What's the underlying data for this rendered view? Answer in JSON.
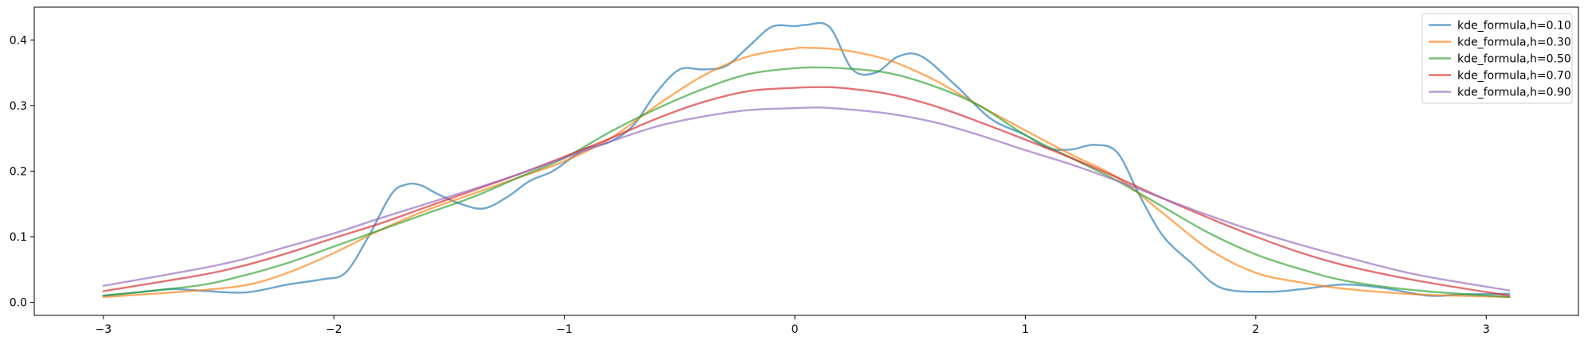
{
  "chart_data": {
    "type": "line",
    "title": "",
    "xlabel": "",
    "ylabel": "",
    "xlim": [
      -3.3,
      3.4
    ],
    "ylim": [
      -0.02,
      0.45
    ],
    "xticks": [
      -3,
      -2,
      -1,
      0,
      1,
      2,
      3
    ],
    "xtick_labels": [
      "−3",
      "−2",
      "−1",
      "0",
      "1",
      "2",
      "3"
    ],
    "yticks": [
      0.0,
      0.1,
      0.2,
      0.3,
      0.4
    ],
    "ytick_labels": [
      "0.0",
      "0.1",
      "0.2",
      "0.3",
      "0.4"
    ],
    "grid": false,
    "legend_position": "top-right",
    "series": [
      {
        "name": "kde_formula,h=0.10",
        "color": "#1f77b4",
        "x": [
          -3.0,
          -2.85,
          -2.7,
          -2.55,
          -2.38,
          -2.2,
          -2.05,
          -1.95,
          -1.85,
          -1.75,
          -1.68,
          -1.62,
          -1.55,
          -1.45,
          -1.35,
          -1.25,
          -1.15,
          -1.05,
          -0.95,
          -0.9,
          -0.8,
          -0.7,
          -0.6,
          -0.5,
          -0.4,
          -0.3,
          -0.2,
          -0.1,
          0.0,
          0.05,
          0.15,
          0.25,
          0.35,
          0.45,
          0.55,
          0.7,
          0.85,
          1.0,
          1.1,
          1.2,
          1.3,
          1.4,
          1.5,
          1.6,
          1.72,
          1.85,
          2.05,
          2.2,
          2.38,
          2.55,
          2.75,
          2.9,
          3.1
        ],
        "y": [
          0.01,
          0.015,
          0.02,
          0.017,
          0.015,
          0.027,
          0.035,
          0.045,
          0.1,
          0.165,
          0.18,
          0.178,
          0.165,
          0.15,
          0.143,
          0.16,
          0.185,
          0.2,
          0.225,
          0.235,
          0.245,
          0.27,
          0.32,
          0.355,
          0.355,
          0.36,
          0.39,
          0.42,
          0.421,
          0.423,
          0.42,
          0.355,
          0.35,
          0.375,
          0.375,
          0.33,
          0.28,
          0.255,
          0.235,
          0.233,
          0.24,
          0.228,
          0.16,
          0.1,
          0.06,
          0.022,
          0.016,
          0.02,
          0.027,
          0.022,
          0.01,
          0.012,
          0.013
        ]
      },
      {
        "name": "kde_formula,h=0.30",
        "color": "#ff7f0e",
        "x": [
          -3.0,
          -2.7,
          -2.4,
          -2.2,
          -2.0,
          -1.8,
          -1.6,
          -1.4,
          -1.2,
          -1.0,
          -0.8,
          -0.6,
          -0.4,
          -0.2,
          0.0,
          0.05,
          0.2,
          0.4,
          0.6,
          0.8,
          1.0,
          1.2,
          1.4,
          1.6,
          1.8,
          2.0,
          2.2,
          2.4,
          2.7,
          3.1
        ],
        "y": [
          0.008,
          0.015,
          0.025,
          0.045,
          0.075,
          0.11,
          0.14,
          0.165,
          0.19,
          0.215,
          0.25,
          0.3,
          0.345,
          0.375,
          0.387,
          0.388,
          0.385,
          0.37,
          0.34,
          0.3,
          0.262,
          0.225,
          0.19,
          0.135,
          0.08,
          0.045,
          0.03,
          0.02,
          0.012,
          0.008
        ]
      },
      {
        "name": "kde_formula,h=0.50",
        "color": "#2ca02c",
        "x": [
          -3.0,
          -2.6,
          -2.4,
          -2.2,
          -2.0,
          -1.8,
          -1.6,
          -1.4,
          -1.2,
          -1.0,
          -0.8,
          -0.6,
          -0.4,
          -0.2,
          0.0,
          0.1,
          0.2,
          0.4,
          0.6,
          0.8,
          1.0,
          1.2,
          1.4,
          1.6,
          1.8,
          2.0,
          2.2,
          2.4,
          2.7,
          3.1
        ],
        "y": [
          0.01,
          0.025,
          0.04,
          0.06,
          0.085,
          0.11,
          0.135,
          0.16,
          0.19,
          0.22,
          0.26,
          0.295,
          0.325,
          0.348,
          0.357,
          0.358,
          0.357,
          0.35,
          0.33,
          0.3,
          0.255,
          0.22,
          0.185,
          0.145,
          0.105,
          0.073,
          0.05,
          0.032,
          0.018,
          0.008
        ]
      },
      {
        "name": "kde_formula,h=0.70",
        "color": "#d62728",
        "x": [
          -3.0,
          -2.6,
          -2.4,
          -2.2,
          -2.0,
          -1.8,
          -1.6,
          -1.4,
          -1.2,
          -1.0,
          -0.8,
          -0.6,
          -0.4,
          -0.2,
          0.0,
          0.1,
          0.2,
          0.4,
          0.6,
          0.8,
          1.0,
          1.2,
          1.4,
          1.6,
          1.8,
          2.0,
          2.2,
          2.4,
          2.7,
          3.1
        ],
        "y": [
          0.017,
          0.04,
          0.055,
          0.075,
          0.098,
          0.12,
          0.145,
          0.17,
          0.195,
          0.222,
          0.25,
          0.28,
          0.305,
          0.322,
          0.327,
          0.328,
          0.327,
          0.318,
          0.3,
          0.275,
          0.248,
          0.22,
          0.19,
          0.158,
          0.128,
          0.1,
          0.075,
          0.055,
          0.033,
          0.01
        ]
      },
      {
        "name": "kde_formula,h=0.90",
        "color": "#9467bd",
        "x": [
          -3.0,
          -2.6,
          -2.4,
          -2.2,
          -2.0,
          -1.8,
          -1.6,
          -1.4,
          -1.2,
          -1.0,
          -0.8,
          -0.6,
          -0.4,
          -0.2,
          0.0,
          0.1,
          0.2,
          0.4,
          0.6,
          0.8,
          1.0,
          1.2,
          1.4,
          1.6,
          1.8,
          2.0,
          2.2,
          2.4,
          2.7,
          3.1
        ],
        "y": [
          0.025,
          0.05,
          0.065,
          0.085,
          0.105,
          0.128,
          0.15,
          0.172,
          0.195,
          0.22,
          0.245,
          0.268,
          0.283,
          0.293,
          0.296,
          0.297,
          0.295,
          0.288,
          0.275,
          0.255,
          0.232,
          0.21,
          0.185,
          0.158,
          0.132,
          0.108,
          0.087,
          0.068,
          0.042,
          0.018
        ]
      }
    ]
  }
}
